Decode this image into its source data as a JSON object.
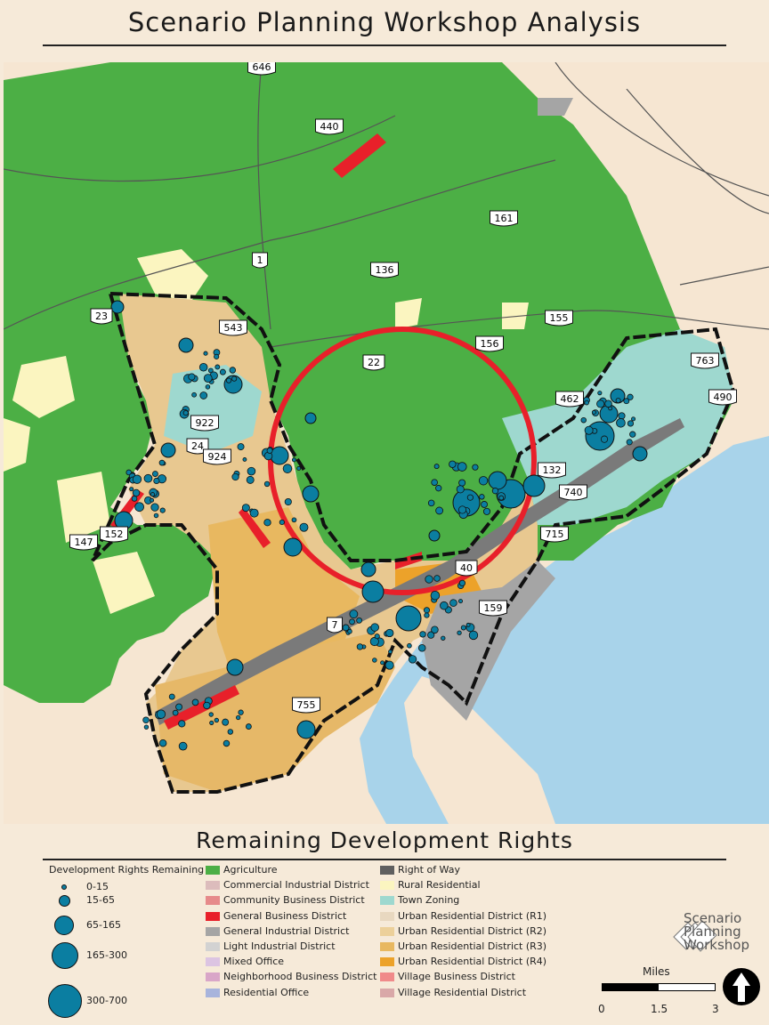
{
  "title": "Scenario Planning Workshop Analysis",
  "subtitle": "Remaining Development Rights",
  "map": {
    "route_labels": [
      "646",
      "440",
      "161",
      "1",
      "136",
      "23",
      "543",
      "155",
      "156",
      "22",
      "763",
      "490",
      "462",
      "922",
      "24",
      "924",
      "132",
      "740",
      "152",
      "147",
      "715",
      "40",
      "159",
      "7",
      "755"
    ],
    "highlight_circle_color": "#e8202a",
    "bubble_color": "#0b7ea1",
    "water_color": "#a8d3ea",
    "land_color": "#f6e6d2"
  },
  "legend": {
    "bubble_title": "Development Rights Remaining",
    "bubbles": [
      "0-15",
      "15-65",
      "65-165",
      "165-300",
      "300-700"
    ],
    "zoning": [
      {
        "label": "Agriculture",
        "color": "#4caf45"
      },
      {
        "label": "Commercial Industrial District",
        "color": "#dcbcbc"
      },
      {
        "label": "Community Business District",
        "color": "#e68a8a"
      },
      {
        "label": "General Business District",
        "color": "#e8202a"
      },
      {
        "label": "General Industrial District",
        "color": "#a5a5a5"
      },
      {
        "label": "Light Industrial District",
        "color": "#d2d2d2"
      },
      {
        "label": "Mixed Office",
        "color": "#dcc4e2"
      },
      {
        "label": "Neighborhood Business District",
        "color": "#d9a6c8"
      },
      {
        "label": "Residential Office",
        "color": "#a8b4dc"
      },
      {
        "label": "Right of Way",
        "color": "#5f5f5f"
      },
      {
        "label": "Rural Residential",
        "color": "#fbf5c0"
      },
      {
        "label": "Town Zoning",
        "color": "#9ed8cf"
      },
      {
        "label": "Urban Residential District (R1)",
        "color": "#e8d8c0"
      },
      {
        "label": "Urban Residential District (R2)",
        "color": "#ecd09a"
      },
      {
        "label": "Urban Residential District (R3)",
        "color": "#e8b860"
      },
      {
        "label": "Urban Residential District (R4)",
        "color": "#eca22a"
      },
      {
        "label": "Village Business District",
        "color": "#f08a8a"
      },
      {
        "label": "Village Residential District",
        "color": "#d9a8a8"
      }
    ]
  },
  "logo": {
    "line1": "Scenario",
    "line2": "Planning",
    "line3": "Workshop"
  },
  "scale_bar": {
    "unit": "Miles",
    "ticks": [
      "0",
      "1.5",
      "3"
    ]
  },
  "north_arrow": "north-arrow-icon"
}
